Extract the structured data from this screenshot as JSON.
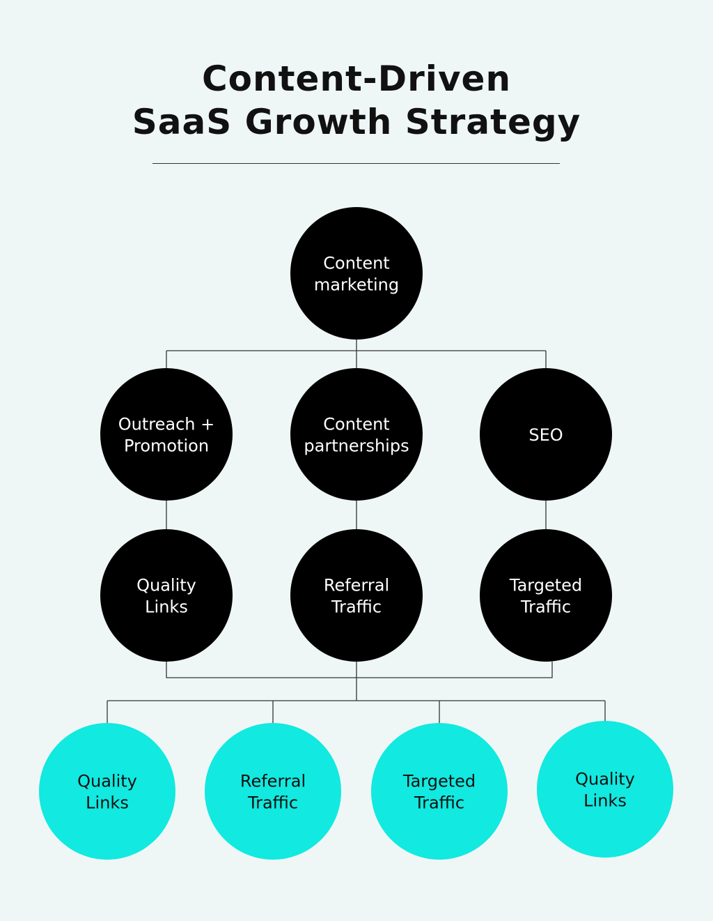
{
  "title": {
    "line1": "Content-Driven",
    "line2": "SaaS Growth Strategy"
  },
  "colors": {
    "dark_node": "#000000",
    "accent_node": "#12e9e0",
    "background": "#eff7f6",
    "text_light": "#ffffff",
    "text_dark": "#111111"
  },
  "nodes": {
    "root": [
      "Content",
      "marketing"
    ],
    "level2": [
      [
        "Outreach +",
        "Promotion"
      ],
      [
        "Content",
        "partnerships"
      ],
      [
        "SEO"
      ]
    ],
    "level3": [
      [
        "Quality",
        "Links"
      ],
      [
        "Referral",
        "Traffic"
      ],
      [
        "Targeted",
        "Traffic"
      ]
    ],
    "outcomes": [
      [
        "Quality",
        "Links"
      ],
      [
        "Referral",
        "Traffic"
      ],
      [
        "Targeted",
        "Traffic"
      ],
      [
        "Quality",
        "Links"
      ]
    ]
  }
}
